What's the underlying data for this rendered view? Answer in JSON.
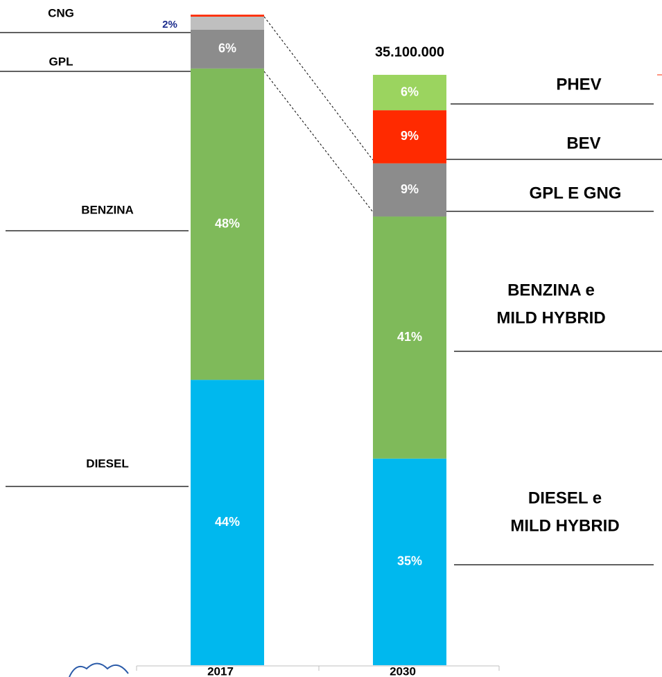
{
  "chart_data": {
    "type": "stacked_bar",
    "categories": [
      "2017",
      "2030"
    ],
    "ylim": [
      0,
      38560000
    ],
    "bars": [
      {
        "total": 38560000,
        "segments": [
          {
            "name": [
              "DIESEL"
            ],
            "value": 44,
            "value_label": "44%",
            "color": "#00b8ee"
          },
          {
            "name": [
              "BENZINA"
            ],
            "value": 48,
            "value_label": "48%",
            "color": "#7fba5a"
          },
          {
            "name": [
              "GPL"
            ],
            "value": 6,
            "value_label": "6%",
            "color": "#8c8c8c"
          },
          {
            "name": [
              "CNG"
            ],
            "value": 2,
            "value_label": "2%",
            "color": "#bfbfbf"
          },
          {
            "value": 0.3,
            "color": "#ff2a00"
          }
        ]
      },
      {
        "total": 35100000,
        "total_label": "35.100.000",
        "segments": [
          {
            "name": [
              "DIESEL e",
              "MILD HYBRID"
            ],
            "value": 35,
            "value_label": "35%",
            "color": "#00b8ee"
          },
          {
            "name": [
              "BENZINA e",
              "MILD HYBRID"
            ],
            "value": 41,
            "value_label": "41%",
            "color": "#7fba5a"
          },
          {
            "name": [
              "GPL E GNG"
            ],
            "value": 9,
            "value_label": "9%",
            "color": "#8c8c8c"
          },
          {
            "name": [
              "BEV"
            ],
            "value": 9,
            "value_label": "9%",
            "color": "#ff2a00"
          },
          {
            "name": [
              "PHEV"
            ],
            "value": 6,
            "value_label": "6%",
            "color": "#9bd45f"
          }
        ]
      }
    ]
  }
}
